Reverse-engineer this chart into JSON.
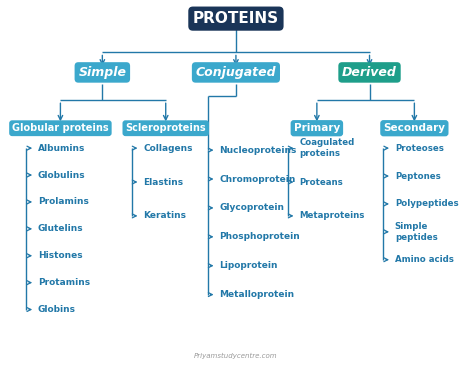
{
  "title": "PROTEINS",
  "title_bg": "#1a3558",
  "title_fg": "white",
  "simple_color": "#3ba8cc",
  "conjugated_color": "#3ba8cc",
  "derived_color": "#1e9e8a",
  "sub_box_color": "#3ba8cc",
  "item_color": "#2278a8",
  "line_color": "#2278a8",
  "background": "#ffffff",
  "watermark": "Priyamstudycentre.com",
  "globular_items": [
    "Albumins",
    "Globulins",
    "Prolamins",
    "Glutelins",
    "Histones",
    "Protamins",
    "Globins"
  ],
  "sclero_items": [
    "Collagens",
    "Elastins",
    "Keratins"
  ],
  "conjugated_items": [
    "Nucleoproteins",
    "Chromoprotein",
    "Glycoprotein",
    "Phosphoprotein",
    "Lipoprotein",
    "Metalloprotein"
  ],
  "primary_items": [
    "Coagulated\nproteins",
    "Proteans",
    "Metaproteins"
  ],
  "secondary_items": [
    "Proteoses",
    "Peptones",
    "Polypeptides",
    "Simple\npeptides",
    "Amino acids"
  ]
}
